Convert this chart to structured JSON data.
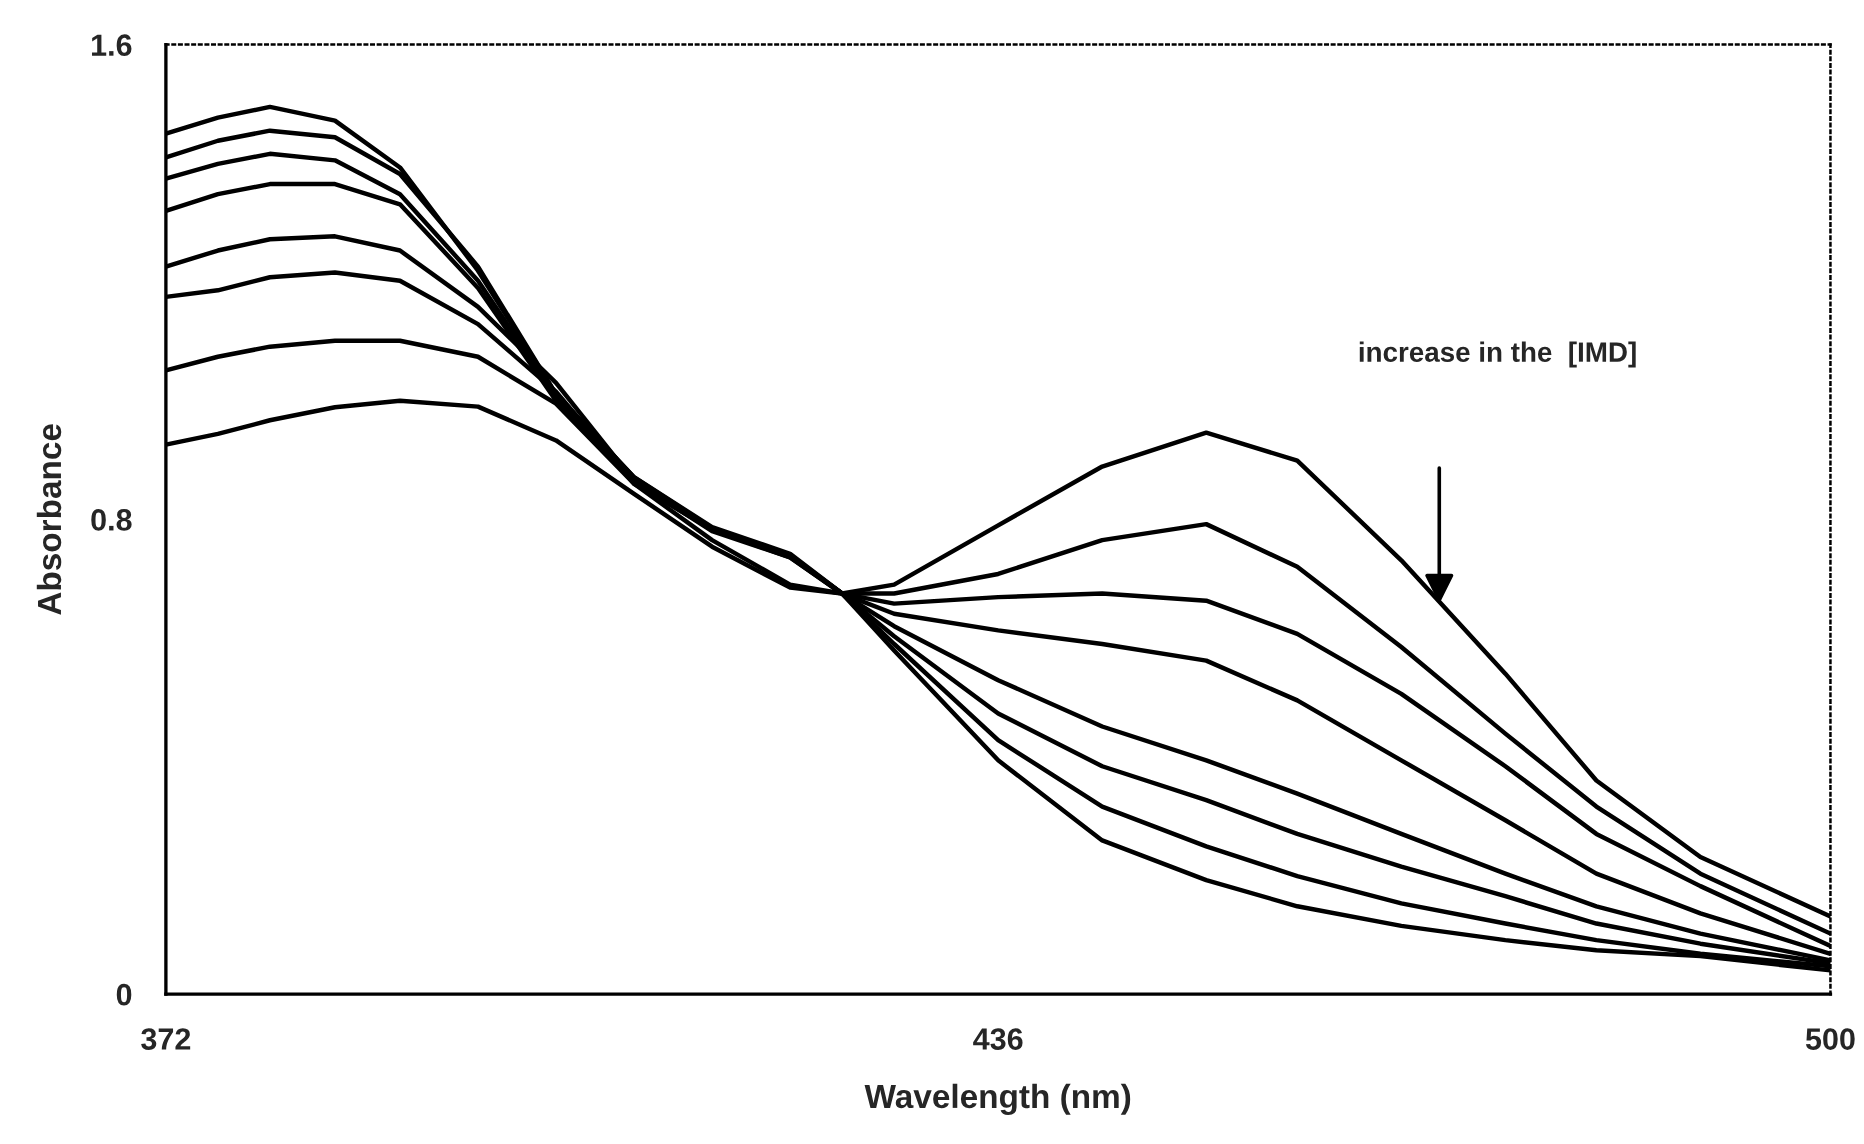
{
  "chart_data": {
    "type": "line",
    "xlabel": "Wavelength (nm)",
    "ylabel": "Absorbance",
    "x": [
      372,
      376,
      380,
      385,
      390,
      396,
      402,
      408,
      414,
      420,
      424,
      428,
      436,
      444,
      452,
      459,
      467,
      475,
      482,
      490,
      500
    ],
    "xlim": [
      372,
      500
    ],
    "xticks": [
      372,
      436,
      500
    ],
    "ylim": [
      0,
      1.6
    ],
    "yticks": [
      0,
      0.8,
      1.6
    ],
    "grid": false,
    "legend": false,
    "marker": "none",
    "line_style": "solid",
    "series": [
      {
        "color": "#000000",
        "values": [
          1.45,
          1.477,
          1.495,
          1.472,
          1.393,
          1.219,
          1.011,
          0.871,
          0.787,
          0.742,
          0.675,
          0.579,
          0.394,
          0.259,
          0.192,
          0.148,
          0.115,
          0.091,
          0.074,
          0.064,
          0.04
        ]
      },
      {
        "color": "#000000",
        "values": [
          1.41,
          1.438,
          1.455,
          1.444,
          1.382,
          1.226,
          1.011,
          0.871,
          0.785,
          0.74,
          0.675,
          0.59,
          0.428,
          0.316,
          0.249,
          0.199,
          0.153,
          0.119,
          0.091,
          0.068,
          0.047
        ]
      },
      {
        "color": "#000000",
        "values": [
          1.374,
          1.399,
          1.416,
          1.405,
          1.348,
          1.202,
          1.007,
          0.868,
          0.783,
          0.738,
          0.675,
          0.603,
          0.473,
          0.384,
          0.327,
          0.27,
          0.215,
          0.165,
          0.119,
          0.085,
          0.052
        ]
      },
      {
        "color": "#000000",
        "values": [
          1.32,
          1.348,
          1.365,
          1.365,
          1.331,
          1.19,
          1.0,
          0.865,
          0.78,
          0.736,
          0.675,
          0.62,
          0.529,
          0.451,
          0.394,
          0.338,
          0.27,
          0.203,
          0.148,
          0.102,
          0.057
        ]
      },
      {
        "color": "#000000",
        "values": [
          1.226,
          1.253,
          1.272,
          1.277,
          1.253,
          1.158,
          1.03,
          0.865,
          0.785,
          0.738,
          0.675,
          0.641,
          0.613,
          0.59,
          0.562,
          0.495,
          0.394,
          0.293,
          0.203,
          0.136,
          0.068
        ]
      },
      {
        "color": "#000000",
        "values": [
          1.175,
          1.186,
          1.208,
          1.216,
          1.202,
          1.129,
          1.015,
          0.86,
          0.783,
          0.736,
          0.675,
          0.658,
          0.669,
          0.675,
          0.663,
          0.607,
          0.506,
          0.384,
          0.27,
          0.182,
          0.081
        ]
      },
      {
        "color": "#000000",
        "values": [
          1.051,
          1.074,
          1.091,
          1.101,
          1.101,
          1.074,
          0.995,
          0.86,
          0.765,
          0.69,
          0.675,
          0.675,
          0.708,
          0.765,
          0.792,
          0.72,
          0.585,
          0.439,
          0.316,
          0.203,
          0.102
        ]
      },
      {
        "color": "#000000",
        "values": [
          0.926,
          0.944,
          0.967,
          0.989,
          1.0,
          0.99,
          0.933,
          0.843,
          0.754,
          0.685,
          0.675,
          0.69,
          0.79,
          0.889,
          0.946,
          0.899,
          0.731,
          0.54,
          0.36,
          0.231,
          0.131
        ]
      }
    ],
    "annotations": [
      "increase in the  [IMD]"
    ]
  }
}
